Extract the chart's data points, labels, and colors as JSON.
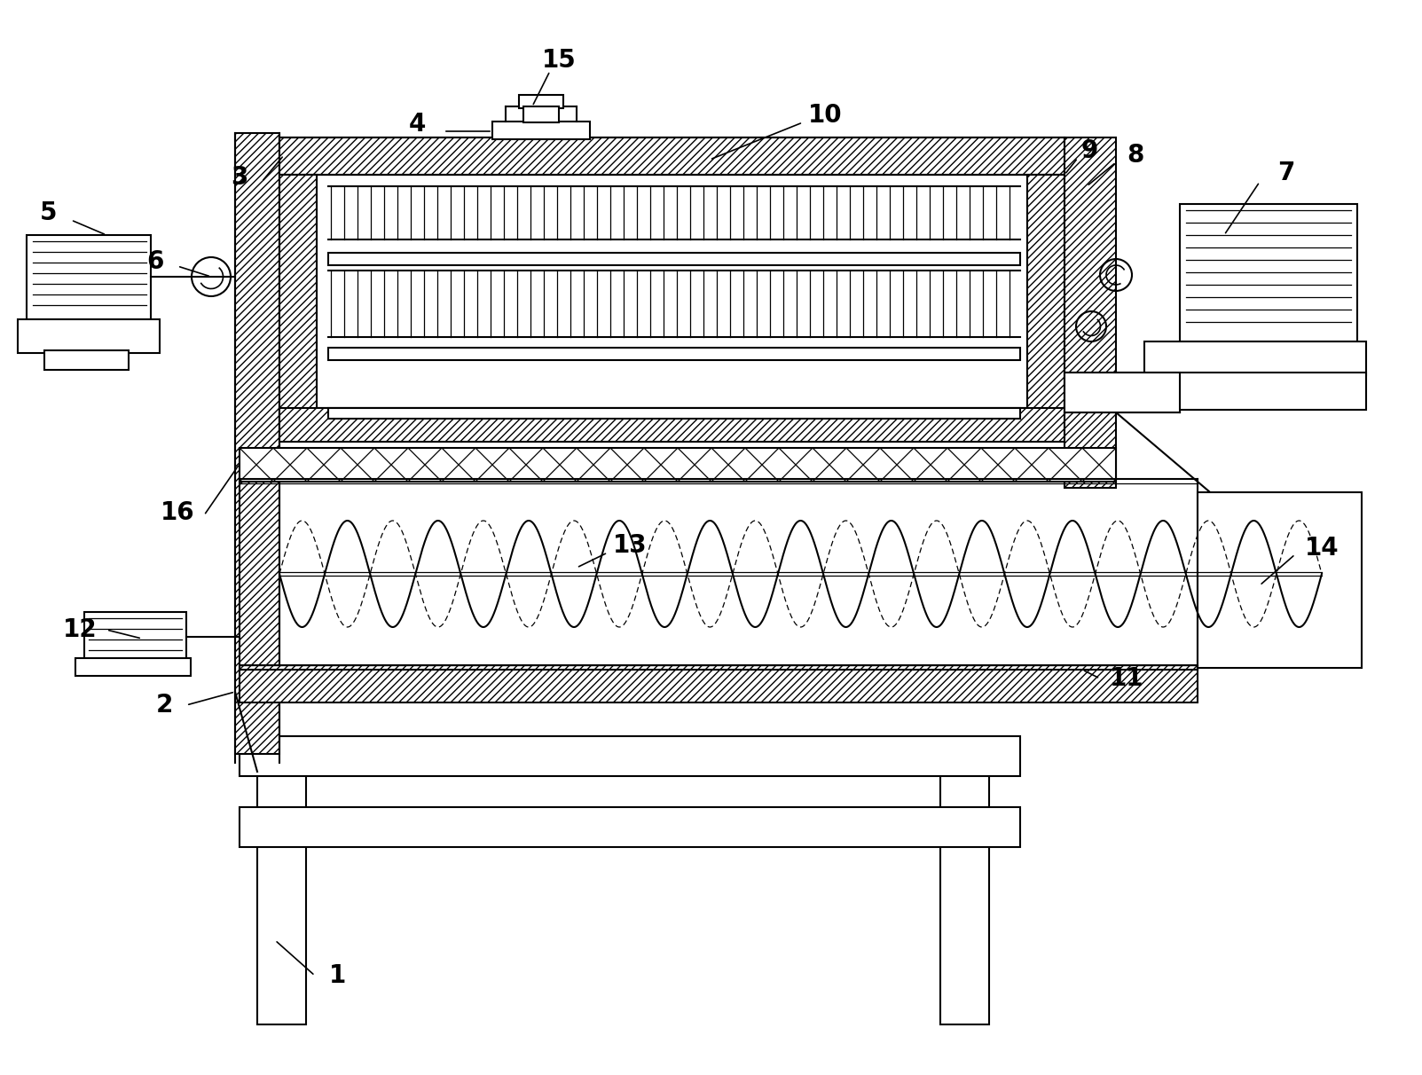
{
  "bg_color": "#ffffff",
  "lw": 1.5,
  "lw_thick": 2.0,
  "figsize": [
    16.03,
    12.12
  ],
  "dpi": 100
}
